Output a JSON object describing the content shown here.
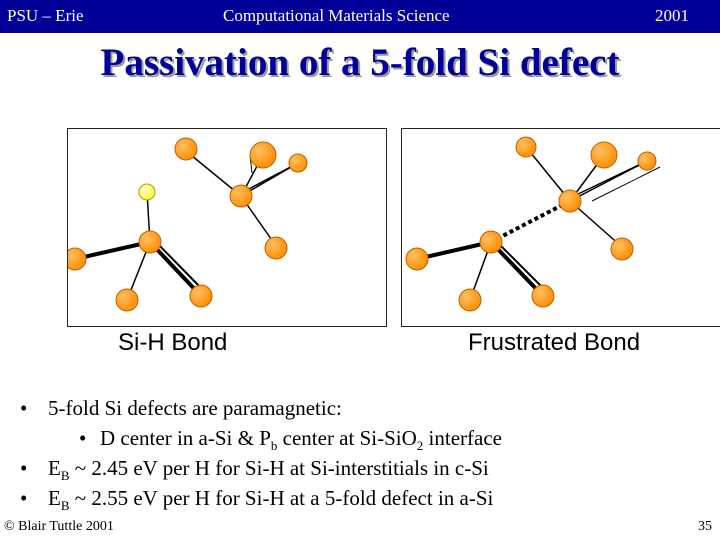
{
  "header": {
    "left": "PSU – Erie",
    "center": "Computational Materials Science",
    "right": "2001"
  },
  "title": "Passivation of a 5-fold Si defect",
  "figures": [
    {
      "caption": "Si-H Bond"
    },
    {
      "caption": "Frustrated Bond"
    }
  ],
  "bullets": [
    {
      "level": 1,
      "parts": [
        "5-fold Si defects are paramagnetic:"
      ]
    },
    {
      "level": 2,
      "parts": [
        "D center in a-Si  & P",
        "b",
        " center at Si-SiO",
        "2",
        " interface"
      ]
    },
    {
      "level": 1,
      "parts": [
        "E",
        "B",
        " ~ 2.45 eV per H  for Si-H at Si-interstitials in c-Si"
      ]
    },
    {
      "level": 1,
      "parts": [
        "E",
        "B",
        " ~ 2.55 eV per H  for Si-H at  a 5-fold defect in a-Si"
      ]
    }
  ],
  "bullet_symbol": "•",
  "footer": {
    "left": "© Blair Tuttle 2001",
    "page": "35"
  },
  "colors": {
    "header_bg": "#000099",
    "title": "#000099",
    "si_atom": "#ff8c00",
    "h_atom": "#ffff33"
  }
}
